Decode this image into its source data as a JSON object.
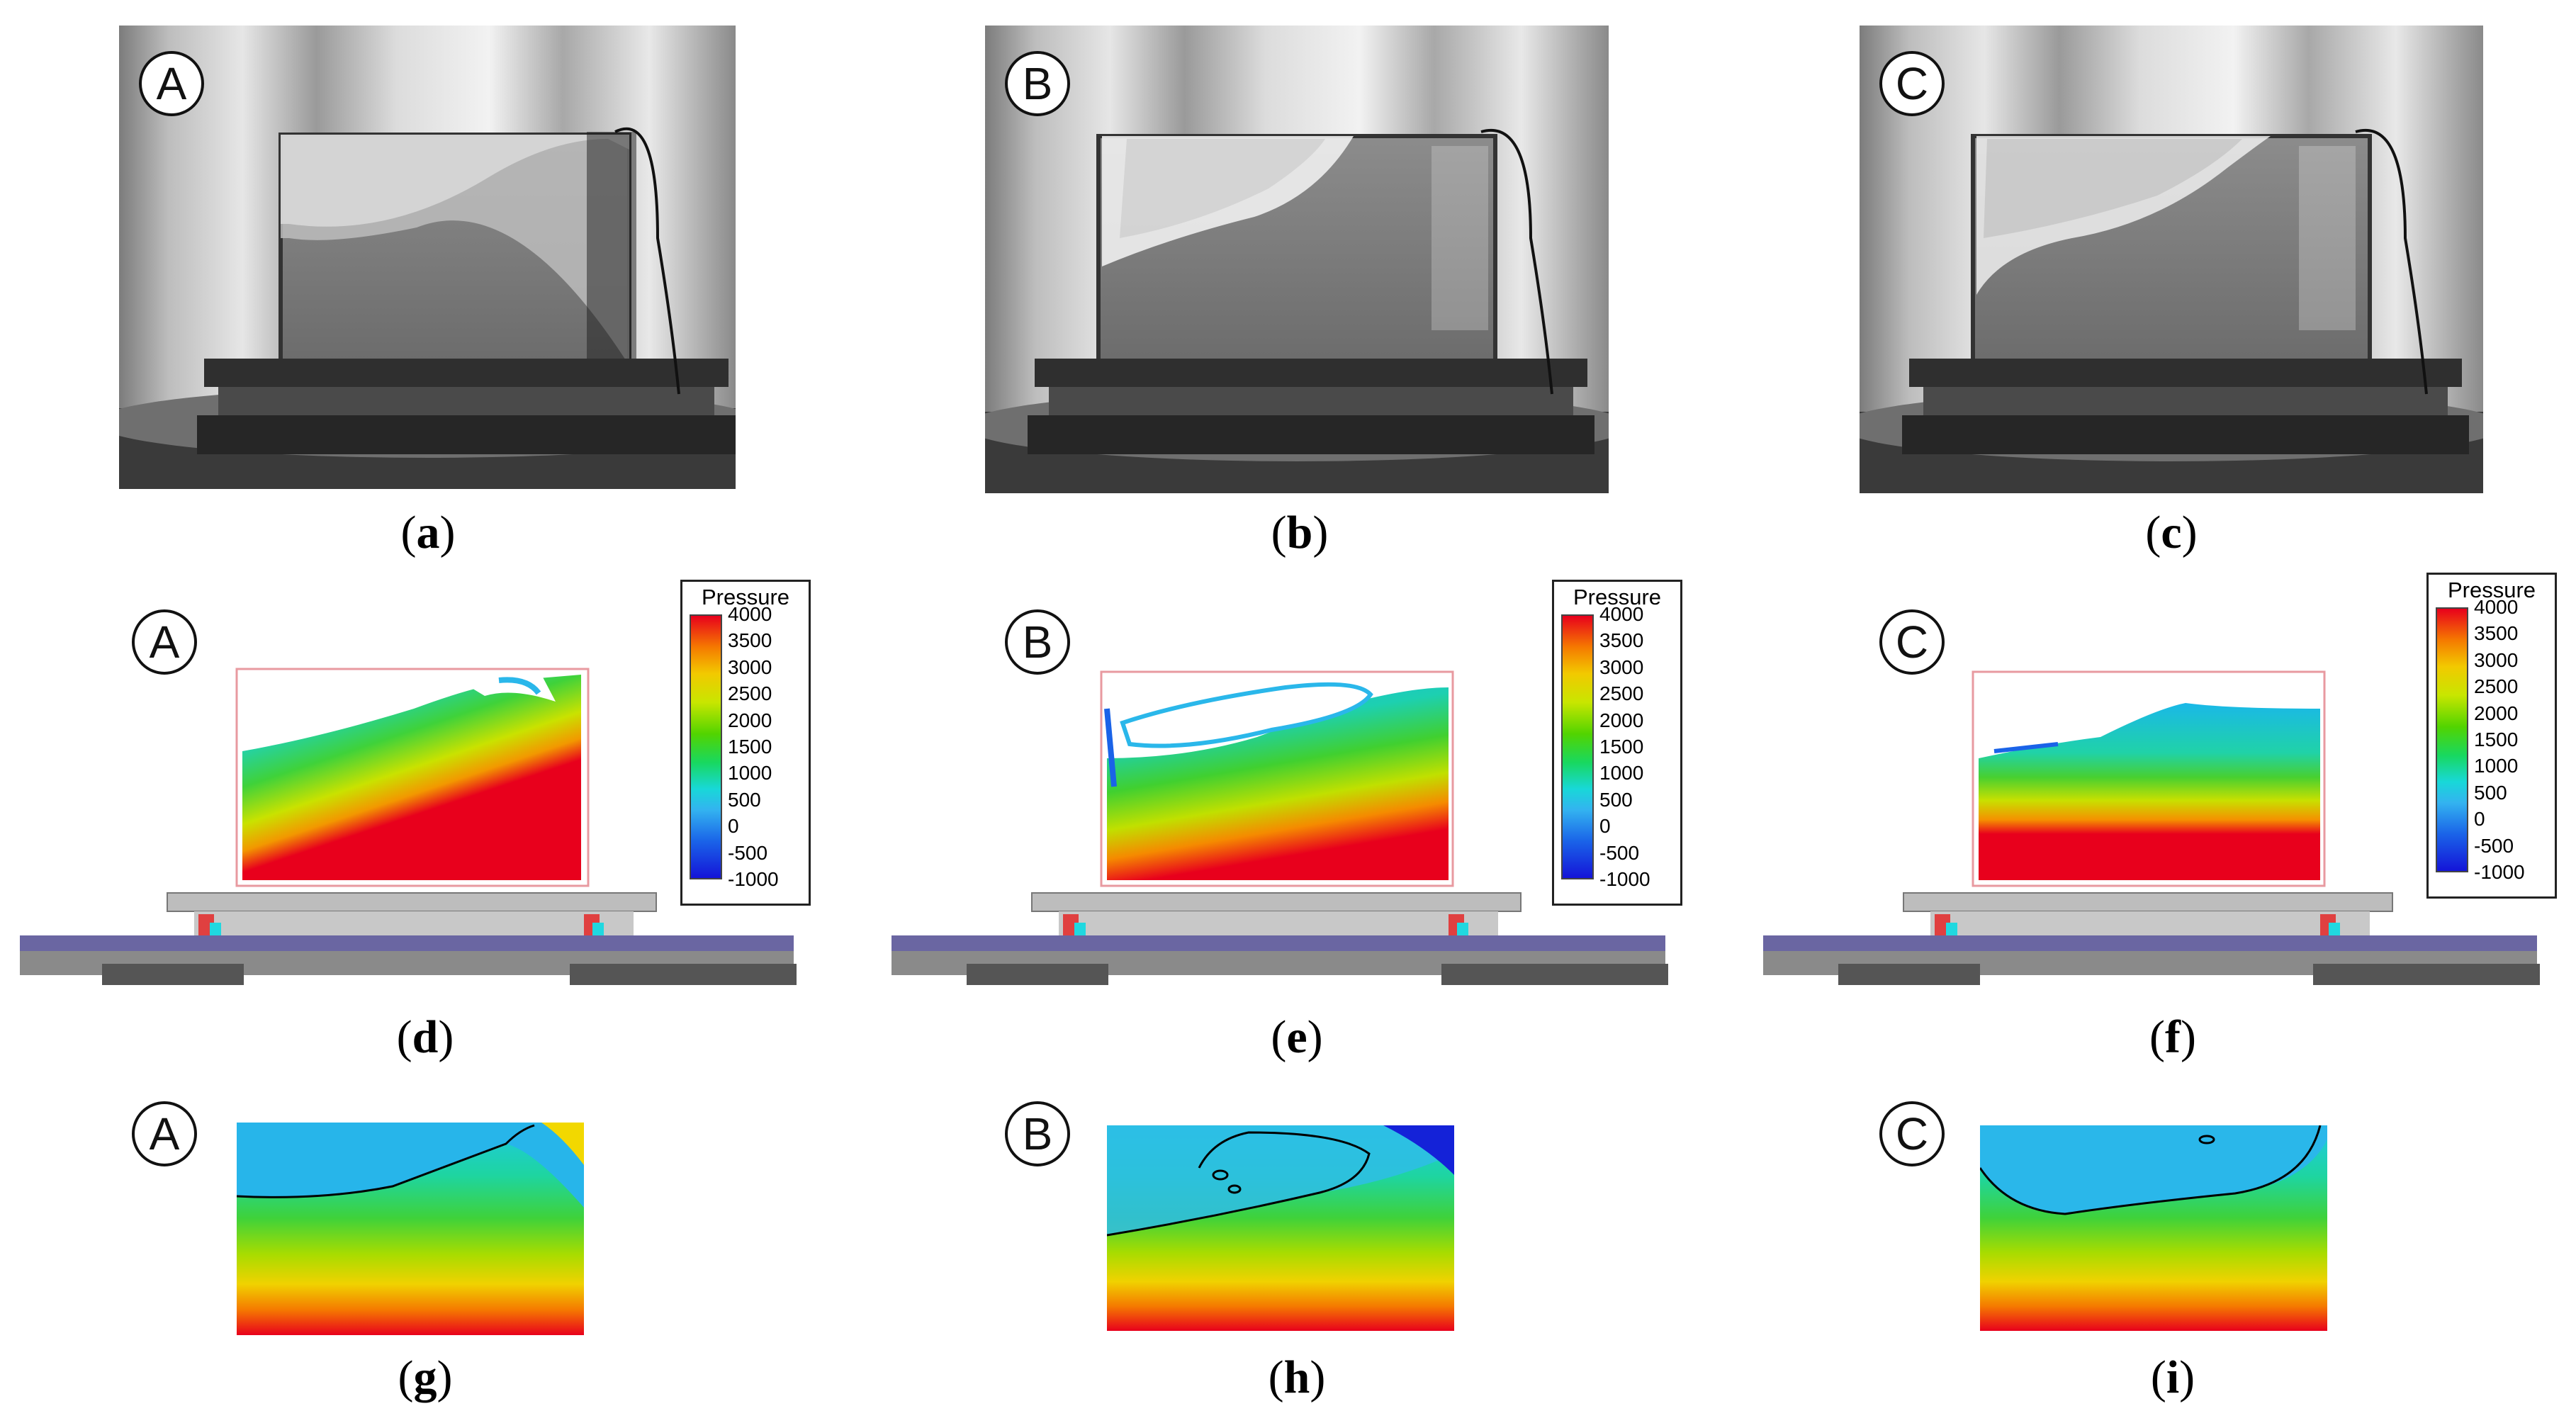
{
  "circle_labels": {
    "a": "A",
    "b": "B",
    "c": "C"
  },
  "captions": {
    "a": {
      "open": "(",
      "letter": "a",
      "close": ")"
    },
    "b": {
      "open": "(",
      "letter": "b",
      "close": ")"
    },
    "c": {
      "open": "(",
      "letter": "c",
      "close": ")"
    },
    "d": {
      "open": "(",
      "letter": "d",
      "close": ")"
    },
    "e": {
      "open": "(",
      "letter": "e",
      "close": ")"
    },
    "f": {
      "open": "(",
      "letter": "f",
      "close": ")"
    },
    "g": {
      "open": "(",
      "letter": "g",
      "close": ")"
    },
    "h": {
      "open": "(",
      "letter": "h",
      "close": ")"
    },
    "i": {
      "open": "(",
      "letter": "i",
      "close": ")"
    }
  },
  "legend": {
    "title": "Pressure",
    "ticks": [
      "4000",
      "3500",
      "3000",
      "2500",
      "2000",
      "1500",
      "1000",
      "500",
      "0",
      "-500",
      "-1000"
    ]
  },
  "colors": {
    "red": "#e8001c",
    "cyan": "#2ab7ea",
    "green": "#46cf2a",
    "yellow": "#e3e000",
    "blue": "#1414d8"
  }
}
